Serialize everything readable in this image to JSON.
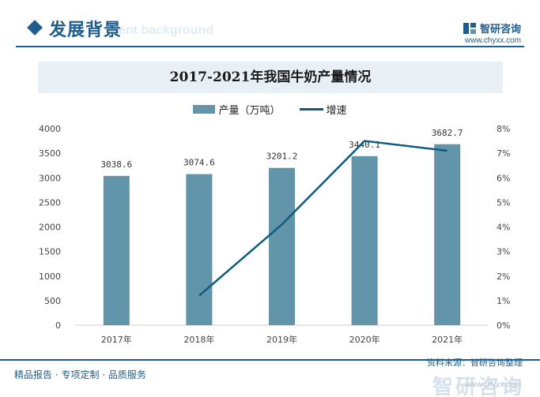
{
  "header": {
    "title": "发展背景",
    "subtitle_watermark": "ent background",
    "brand_name": "智研咨询",
    "brand_url": "www.chyxx.com"
  },
  "chart_data": {
    "type": "bar",
    "title": "2017-2021年我国牛奶产量情况",
    "categories": [
      "2017年",
      "2018年",
      "2019年",
      "2020年",
      "2021年"
    ],
    "series": [
      {
        "name": "产量（万吨）",
        "type": "bar",
        "axis": "left",
        "values": [
          3038.6,
          3074.6,
          3201.2,
          3440.1,
          3682.7
        ]
      },
      {
        "name": "增速",
        "type": "line",
        "axis": "right",
        "values": [
          null,
          1.2,
          4.1,
          7.5,
          7.1
        ]
      }
    ],
    "bar_labels": [
      "3038.6",
      "3074.6",
      "3201.2",
      "3440.1",
      "3682.7"
    ],
    "y_left": {
      "min": 0,
      "max": 4000,
      "ticks": [
        "0",
        "500",
        "1000",
        "1500",
        "2000",
        "2500",
        "3000",
        "3500",
        "4000"
      ]
    },
    "y_right": {
      "min": 0,
      "max": 8,
      "ticks": [
        "0%",
        "1%",
        "2%",
        "3%",
        "4%",
        "5%",
        "6%",
        "7%",
        "8%"
      ]
    },
    "legend_position": "top",
    "grid": false,
    "colors": {
      "bar": "#6294aa",
      "line": "#0e5d80"
    }
  },
  "footer": {
    "left_text": "精品报告 · 专项定制 · 品质服务",
    "source_text": "资料来源：智研咨询整理",
    "brand_name": "智研咨询",
    "brand_url": "www.chyxx.com"
  }
}
